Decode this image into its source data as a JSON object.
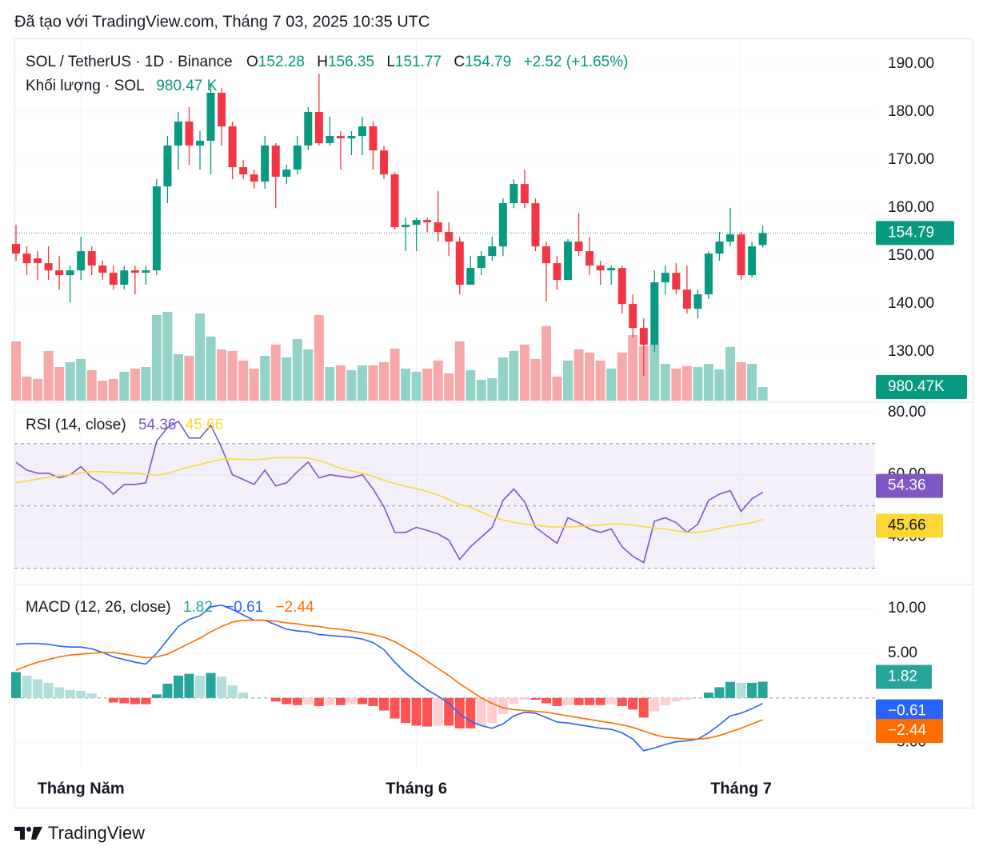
{
  "caption": "Đã tạo với TradingView.com, Tháng 7 03, 2025 10:35 UTC",
  "footer": "TradingView",
  "chart_data": [
    {
      "type": "candlestick",
      "title": "SOL / TetherUS · 1D · Binance",
      "ohlc_letters": [
        "O",
        "H",
        "L",
        "C"
      ],
      "change_label": "+2.52 (+1.65%)",
      "volume_title": "Khối lượng · SOL",
      "volume_label": "980.47 K",
      "volume_badge_label": "980.47K",
      "categories": [
        null,
        null,
        null,
        null,
        null,
        null,
        "Tháng Năm",
        null,
        null,
        null,
        null,
        null,
        null,
        null,
        null,
        null,
        null,
        null,
        null,
        null,
        null,
        null,
        null,
        null,
        null,
        null,
        null,
        null,
        null,
        null,
        null,
        null,
        null,
        null,
        null,
        null,
        null,
        "Tháng 6",
        null,
        null,
        null,
        null,
        null,
        null,
        null,
        null,
        null,
        null,
        null,
        null,
        null,
        null,
        null,
        null,
        null,
        null,
        null,
        null,
        null,
        null,
        null,
        null,
        null,
        null,
        null,
        null,
        null,
        "Tháng 7",
        null,
        null
      ],
      "open": [
        152.5,
        150.5,
        149.5,
        148.5,
        147,
        146,
        147,
        151,
        148,
        146.5,
        144,
        147,
        146.5,
        147,
        164.5,
        173,
        178,
        173,
        174,
        184,
        177,
        168.5,
        167,
        165.5,
        173,
        166.5,
        168,
        173,
        180,
        173.5,
        175,
        174.5,
        175,
        177,
        172,
        167,
        156,
        156.5,
        157.5,
        157,
        155,
        153,
        144,
        147.5,
        150,
        152,
        161,
        165,
        161,
        152,
        148.5,
        145,
        153,
        151,
        148,
        147,
        147.5,
        140,
        135,
        131.5,
        144.5,
        146.5,
        143,
        139,
        142,
        150.5,
        153,
        154.5,
        146,
        152.28
      ],
      "high": [
        156.5,
        152,
        151,
        152,
        150,
        148,
        154,
        152,
        149,
        148,
        148,
        148,
        148,
        166,
        175,
        180,
        181,
        176,
        186,
        185,
        178,
        170,
        168,
        175,
        173.5,
        169,
        175,
        181,
        188,
        179,
        176,
        176,
        179,
        178,
        173,
        167.5,
        158,
        158,
        158,
        163.5,
        157,
        154,
        150,
        151,
        154,
        162,
        166,
        168,
        162,
        153,
        150,
        153.5,
        159,
        154,
        149,
        148,
        148,
        142,
        137,
        147,
        148,
        148.5,
        148,
        143,
        151,
        155,
        160,
        155,
        153,
        156.35
      ],
      "low": [
        149,
        146,
        145,
        145,
        143,
        140.3,
        145,
        146,
        145,
        143,
        143,
        142,
        144,
        146,
        161,
        168,
        169,
        168,
        167,
        173,
        166,
        166,
        164,
        164,
        160,
        165,
        167,
        172,
        173,
        173,
        168,
        171,
        171,
        168,
        166,
        155.5,
        151,
        151,
        155,
        153,
        150,
        142,
        144,
        146,
        149,
        150,
        160,
        160,
        151,
        140.5,
        143,
        145,
        150,
        146,
        144,
        144,
        138,
        133,
        125,
        130,
        142,
        142,
        138,
        137,
        141,
        149,
        152,
        145,
        145.5,
        151.77
      ],
      "close": [
        150.5,
        148.5,
        148.5,
        147,
        146,
        147,
        151,
        148,
        146.5,
        144,
        147,
        146.5,
        147,
        164.5,
        173,
        178,
        173,
        174,
        184,
        177,
        168.5,
        167,
        165.5,
        173,
        166.5,
        168,
        173,
        180,
        173.5,
        175,
        174.5,
        175,
        177,
        172,
        167,
        156,
        156.5,
        157.5,
        157,
        155,
        153,
        144,
        147.5,
        150,
        152,
        161,
        165,
        161,
        152,
        148.5,
        145,
        153,
        151,
        148,
        147,
        147.5,
        140,
        135,
        131.5,
        144.5,
        146.5,
        143,
        139,
        142,
        150.5,
        153,
        154.5,
        146,
        152,
        154.79
      ],
      "volume": [
        4270,
        1730,
        1560,
        3580,
        2420,
        2770,
        3000,
        2190,
        1440,
        1560,
        2080,
        2310,
        2420,
        6170,
        6400,
        3350,
        3230,
        6290,
        4620,
        3690,
        3580,
        2890,
        2310,
        3230,
        4040,
        3120,
        4440,
        3690,
        6170,
        2420,
        2540,
        2190,
        2540,
        2540,
        2770,
        3750,
        2310,
        2080,
        2310,
        2890,
        1960,
        4270,
        2190,
        1500,
        1620,
        3120,
        3580,
        4040,
        3000,
        5370,
        1730,
        2890,
        3690,
        3460,
        2890,
        2310,
        3460,
        4730,
        3920,
        4040,
        2650,
        2310,
        2480,
        2420,
        2650,
        2250,
        3870,
        2770,
        2650,
        980.47
      ],
      "up_color": "#089981",
      "down_color": "#f23645",
      "volume_up_color": "#92d2c7",
      "volume_down_color": "#f7a8a8",
      "ylim": [
        119.7,
        195
      ],
      "yticks": [
        {
          "value": 130,
          "label": "130.00"
        },
        {
          "value": 140,
          "label": "140.00"
        },
        {
          "value": 150,
          "label": "150.00"
        },
        {
          "value": 160,
          "label": "160.00"
        },
        {
          "value": 170,
          "label": "170.00"
        },
        {
          "value": 180,
          "label": "180.00"
        },
        {
          "value": 190,
          "label": "190.00"
        }
      ]
    },
    {
      "type": "line",
      "title": "RSI (14, close)",
      "series": [
        {
          "color": "#7e57c2",
          "values": [
            64,
            61.5,
            60.5,
            60.5,
            59,
            60,
            62.6,
            59,
            57.2,
            53.8,
            56.9,
            56.9,
            57.4,
            70.8,
            75.1,
            77.2,
            71.8,
            71.8,
            75.9,
            68.7,
            60,
            58.5,
            56.9,
            61.5,
            56.4,
            57.4,
            61,
            64.1,
            59,
            60,
            59.5,
            59,
            60,
            55.4,
            49.7,
            41.5,
            41.5,
            43.1,
            42.1,
            41,
            39,
            32.8,
            36.9,
            40,
            43.1,
            51.8,
            55.4,
            51.3,
            43.1,
            40.5,
            38,
            46.2,
            44.6,
            42.6,
            41.5,
            42.6,
            36.9,
            33.8,
            31.8,
            45.1,
            46.2,
            44.6,
            41.5,
            44.1,
            51.8,
            53.8,
            54.9,
            48.2,
            52.3,
            54.36
          ]
        },
        {
          "color": "#fdd835",
          "values": [
            57.4,
            58,
            58.6,
            59.2,
            59.6,
            60,
            60.6,
            61,
            61,
            60.8,
            60.6,
            60.5,
            60.2,
            59.8,
            60.5,
            61.5,
            62.5,
            63.3,
            64.2,
            65,
            65,
            65,
            64.8,
            65.1,
            65.5,
            65.5,
            65.5,
            65.3,
            64.6,
            63.4,
            62,
            61.2,
            60.5,
            59.5,
            58.2,
            57.2,
            56.3,
            55.5,
            54.6,
            53.5,
            52,
            50.5,
            49.5,
            48,
            46.5,
            45.5,
            44.7,
            44.2,
            43.8,
            43.4,
            43.2,
            43.2,
            43.4,
            43.6,
            43.8,
            44.2,
            44.2,
            43.8,
            43.3,
            42.9,
            42.6,
            42,
            41.5,
            41.5,
            42,
            42.8,
            43.5,
            44,
            44.6,
            45.66
          ]
        }
      ],
      "levels": [
        30,
        50,
        70
      ],
      "band_color": "#7e57c2",
      "ylim": [
        25,
        83.3
      ],
      "yticks": [
        {
          "value": 40,
          "label": "40.00"
        },
        {
          "value": 60,
          "label": "60.00"
        },
        {
          "value": 80,
          "label": "80.00"
        }
      ]
    },
    {
      "type": "macd",
      "title": "MACD (12, 26, close)",
      "histogram": {
        "values": [
          2.9,
          2.5,
          2.1,
          1.7,
          1.2,
          0.9,
          0.8,
          0.5,
          0,
          -0.5,
          -0.6,
          -0.7,
          -0.7,
          0.4,
          1.6,
          2.5,
          2.7,
          2.5,
          2.8,
          2.4,
          1.4,
          0.6,
          0,
          0,
          -0.4,
          -0.7,
          -0.8,
          -0.7,
          -0.9,
          -0.8,
          -0.8,
          -0.7,
          -0.7,
          -0.9,
          -1.4,
          -2.3,
          -2.8,
          -3.1,
          -3.2,
          -3.1,
          -3.1,
          -3.4,
          -3.4,
          -3.1,
          -2.8,
          -1.8,
          -0.7,
          -0.2,
          -0.2,
          -0.6,
          -0.9,
          -0.8,
          -0.8,
          -0.8,
          -0.8,
          -0.7,
          -0.9,
          -1.3,
          -2.2,
          -1.5,
          -0.8,
          -0.4,
          -0.2,
          0,
          0.6,
          1.2,
          1.8,
          1.7,
          1.7,
          1.82
        ],
        "colors": [
          "#26a69a",
          "#b2dfdb",
          "#ff5252",
          "#ffcdd2"
        ]
      },
      "series": [
        {
          "color": "#2962ff",
          "last_label": "−0.61",
          "values": [
            6.0,
            6.1,
            6.1,
            6.0,
            5.8,
            5.7,
            5.7,
            5.5,
            5.1,
            4.6,
            4.3,
            4.0,
            3.8,
            5.0,
            6.5,
            8.0,
            8.8,
            9.2,
            10.2,
            10.4,
            9.9,
            9.3,
            8.7,
            8.7,
            8.2,
            7.7,
            7.5,
            7.4,
            7.1,
            7.0,
            6.9,
            6.8,
            6.6,
            6.2,
            5.4,
            4.0,
            2.8,
            1.8,
            0.9,
            0.2,
            -0.6,
            -1.8,
            -2.6,
            -3.1,
            -3.4,
            -2.9,
            -2.0,
            -1.6,
            -1.7,
            -2.2,
            -2.7,
            -2.8,
            -3.0,
            -3.2,
            -3.4,
            -3.5,
            -3.9,
            -4.6,
            -5.9,
            -5.6,
            -5.2,
            -4.9,
            -4.8,
            -4.6,
            -3.9,
            -3.0,
            -2.0,
            -1.7,
            -1.2,
            -0.61
          ]
        },
        {
          "color": "#ff6d00",
          "last_label": "−2.44",
          "values": [
            3.1,
            3.6,
            4.0,
            4.3,
            4.6,
            4.8,
            4.9,
            5.0,
            5.1,
            5.1,
            4.9,
            4.7,
            4.5,
            4.6,
            4.9,
            5.5,
            6.1,
            6.7,
            7.4,
            8.0,
            8.5,
            8.7,
            8.7,
            8.7,
            8.6,
            8.4,
            8.3,
            8.1,
            8.0,
            7.8,
            7.7,
            7.5,
            7.3,
            7.1,
            6.8,
            6.3,
            5.6,
            4.9,
            4.1,
            3.3,
            2.5,
            1.6,
            0.8,
            0.0,
            -0.6,
            -1.1,
            -1.3,
            -1.4,
            -1.5,
            -1.6,
            -1.8,
            -2.0,
            -2.2,
            -2.4,
            -2.6,
            -2.8,
            -3.0,
            -3.3,
            -3.7,
            -4.1,
            -4.4,
            -4.5,
            -4.6,
            -4.6,
            -4.5,
            -4.2,
            -3.8,
            -3.4,
            -2.9,
            -2.44
          ]
        }
      ],
      "ylim": [
        -7.8,
        12.7
      ],
      "yticks": [
        {
          "value": -5,
          "label": "−5.00"
        },
        {
          "value": 5,
          "label": "5.00"
        },
        {
          "value": 10,
          "label": "10.00"
        }
      ]
    }
  ]
}
